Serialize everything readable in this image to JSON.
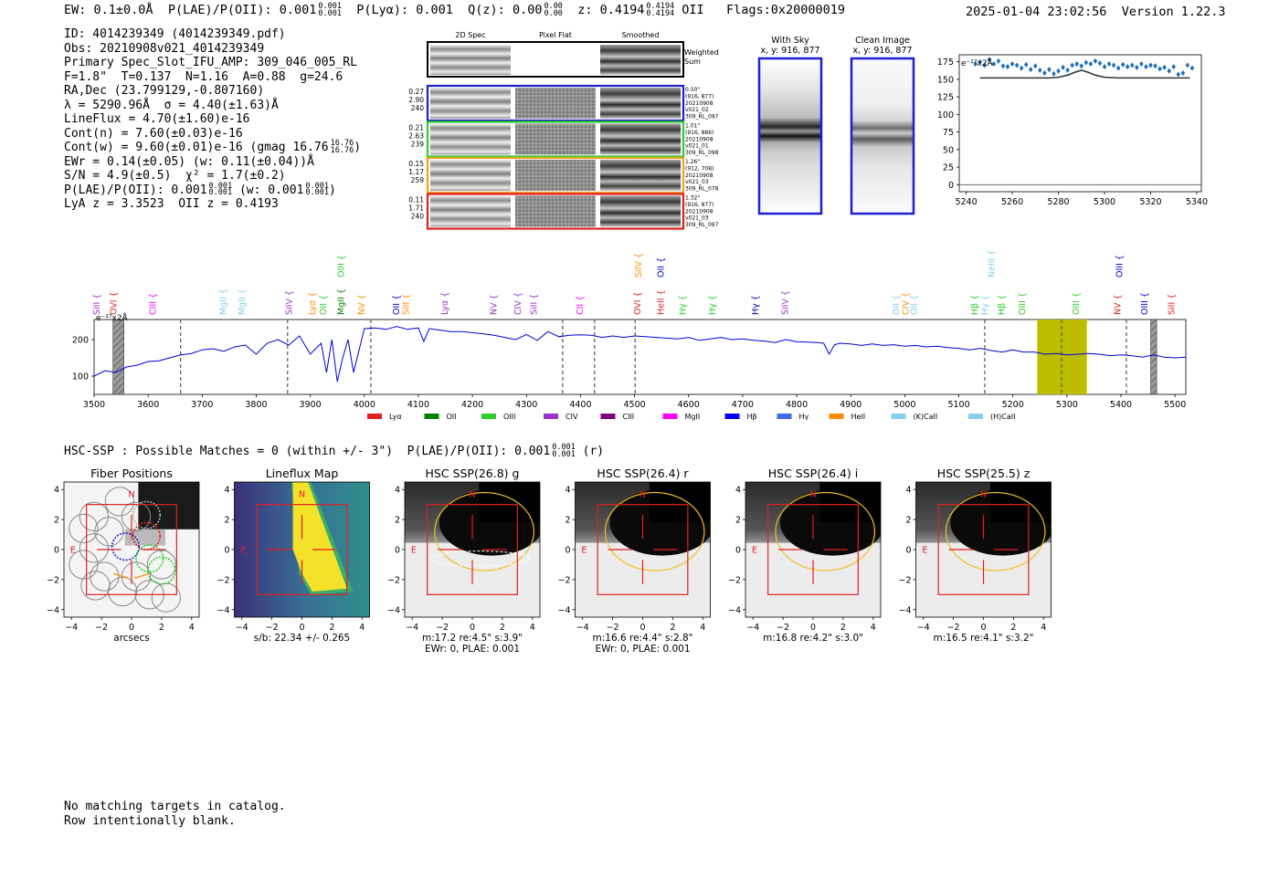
{
  "header": {
    "ew": "EW: 0.1±0.0Å",
    "plae": "P(LAE)/P(OII): 0.001",
    "plae_sup": "0.001",
    "plae_sub": "0.001",
    "plya": "P(Lyα): 0.001",
    "qz": "Q(z): 0.00",
    "qz_sup": "0.00",
    "qz_sub": "0.00",
    "z": "z: 0.4194",
    "z_sup": "0.4194",
    "z_sub": "0.4194",
    "z_line": "OII",
    "flags": "Flags:0x20000019",
    "datetime": "2025-01-04 23:02:56",
    "version": "Version 1.22.3"
  },
  "info": [
    "ID: 4014239349 (4014239349.pdf)",
    "Obs: 20210908v021_4014239349",
    "Primary Spec_Slot_IFU_AMP: 309_046_005_RL",
    "F=1.8\"  T=0.137  N=1.16  A=0.88  g=24.6",
    "RA,Dec (23.799129,-0.807160)",
    "λ = 5290.96Å  σ = 4.40(±1.63)Å",
    "LineFlux = 4.70(±1.60)e-16",
    "Cont(n) = 7.60(±0.03)e-16",
    "Cont(w) = 9.60(±0.01)e-16 (gmag 16.76",
    "EWr = 0.14(±0.05) (w: 0.11(±0.04))Å",
    "S/N = 4.9(±0.5)  χ² = 1.7(±0.2)",
    "P(LAE)/P(OII): 0.001",
    "LyA z = 3.3523  OII z = 0.4193"
  ],
  "info_extras": {
    "gmag_sup": "16.76",
    "gmag_sub": "16.76",
    "plae_sup": "0.001",
    "plae_sub": "0.001",
    "plae_w": "(w: 0.001",
    "plae_w_sup": "0.001",
    "plae_w_sub": "0.001"
  },
  "cutouts": {
    "col_titles": [
      "2D Spec",
      "Pixel Flat",
      "Smoothed"
    ],
    "weighted_label": [
      "Weighted",
      "Sum"
    ],
    "rows": [
      {
        "left": [
          "0.27",
          "2.90",
          "240"
        ],
        "right": [
          "0.50\"",
          "(916, 877)",
          "20210908",
          "v021_02",
          "309_RL_097"
        ],
        "color": "#1f1fd0"
      },
      {
        "left": [
          "0.21",
          "2.63",
          "239"
        ],
        "right": [
          "1.01\"",
          "(916, 886)",
          "20210908",
          "v021_01",
          "309_RL_098"
        ],
        "color": "#2ecc2e"
      },
      {
        "left": [
          "0.15",
          "1.17",
          "259"
        ],
        "right": [
          "1.26\"",
          "(912, 708)",
          "20210908",
          "v021_03",
          "309_RL_078"
        ],
        "color": "#f0a020"
      },
      {
        "left": [
          "0.11",
          "1.71",
          "240"
        ],
        "right": [
          "1.32\"",
          "(916, 877)",
          "20210908",
          "v021_03",
          "309_RL_097"
        ],
        "color": "#e02020"
      }
    ],
    "with_sky": [
      "With Sky",
      "x, y: 916, 877"
    ],
    "clean_image": [
      "Clean Image",
      "x, y: 916, 877"
    ]
  },
  "zoom_chart": {
    "type": "line",
    "unit_label": "e⁻¹⁷x2Å",
    "xlim": [
      5237,
      5342
    ],
    "ylim": [
      -10,
      185
    ],
    "xticks": [
      5240,
      5260,
      5280,
      5300,
      5320,
      5340
    ],
    "yticks": [
      0,
      25,
      50,
      75,
      100,
      125,
      150,
      175
    ],
    "data_x": [
      5244,
      5246,
      5248,
      5250,
      5252,
      5254,
      5256,
      5258,
      5260,
      5262,
      5264,
      5266,
      5268,
      5270,
      5272,
      5274,
      5276,
      5278,
      5280,
      5282,
      5284,
      5286,
      5288,
      5290,
      5292,
      5294,
      5296,
      5298,
      5300,
      5302,
      5304,
      5306,
      5308,
      5310,
      5312,
      5314,
      5316,
      5318,
      5320,
      5322,
      5324,
      5326,
      5328,
      5330,
      5332,
      5334,
      5336,
      5338
    ],
    "data_y": [
      172,
      175,
      170,
      178,
      172,
      176,
      169,
      168,
      172,
      170,
      166,
      171,
      164,
      169,
      163,
      159,
      164,
      158,
      162,
      167,
      163,
      170,
      172,
      169,
      174,
      172,
      176,
      173,
      168,
      172,
      170,
      166,
      171,
      168,
      170,
      167,
      172,
      168,
      170,
      169,
      165,
      167,
      162,
      168,
      157,
      159,
      170,
      166
    ],
    "model_x": [
      5246,
      5260,
      5270,
      5276,
      5280,
      5284,
      5287,
      5290,
      5293,
      5296,
      5300,
      5306,
      5316,
      5337
    ],
    "model_y": [
      152,
      152,
      152,
      152,
      153,
      156,
      160,
      163,
      160,
      156,
      153,
      152,
      152,
      152
    ],
    "zero_line": 0
  },
  "chart_data": {
    "type": "line",
    "unit_label": "e⁻¹⁷x2Å",
    "xlim": [
      3500,
      5520
    ],
    "ylim": [
      50,
      255
    ],
    "xticks": [
      3500,
      3600,
      3700,
      3800,
      3900,
      4000,
      4100,
      4200,
      4300,
      4400,
      4500,
      4600,
      4700,
      4800,
      4900,
      5000,
      5100,
      5200,
      5300,
      5400,
      5500
    ],
    "yticks": [
      100,
      200
    ],
    "x": [
      3500,
      3520,
      3540,
      3560,
      3580,
      3600,
      3620,
      3640,
      3660,
      3680,
      3700,
      3720,
      3740,
      3760,
      3780,
      3800,
      3820,
      3840,
      3860,
      3880,
      3900,
      3920,
      3930,
      3940,
      3950,
      3960,
      3970,
      3980,
      4000,
      4020,
      4040,
      4060,
      4080,
      4100,
      4110,
      4120,
      4140,
      4160,
      4180,
      4200,
      4220,
      4240,
      4260,
      4280,
      4300,
      4320,
      4340,
      4360,
      4380,
      4400,
      4420,
      4440,
      4460,
      4480,
      4500,
      4520,
      4540,
      4560,
      4580,
      4600,
      4620,
      4640,
      4660,
      4680,
      4700,
      4720,
      4740,
      4760,
      4780,
      4800,
      4820,
      4840,
      4850,
      4860,
      4870,
      4880,
      4900,
      4920,
      4940,
      4960,
      4980,
      5000,
      5020,
      5040,
      5060,
      5080,
      5100,
      5120,
      5140,
      5160,
      5180,
      5200,
      5220,
      5240,
      5260,
      5280,
      5300,
      5320,
      5340,
      5360,
      5380,
      5400,
      5420,
      5440,
      5460,
      5480,
      5500,
      5520
    ],
    "y": [
      100,
      115,
      110,
      125,
      130,
      140,
      142,
      150,
      158,
      162,
      172,
      175,
      168,
      180,
      185,
      160,
      190,
      200,
      185,
      210,
      160,
      190,
      110,
      200,
      85,
      150,
      200,
      110,
      230,
      232,
      228,
      236,
      228,
      232,
      195,
      230,
      226,
      222,
      222,
      219,
      216,
      212,
      206,
      200,
      214,
      198,
      222,
      208,
      212,
      213,
      212,
      206,
      210,
      206,
      210,
      208,
      206,
      204,
      202,
      206,
      198,
      202,
      206,
      200,
      202,
      198,
      196,
      192,
      200,
      194,
      193,
      192,
      190,
      160,
      186,
      190,
      188,
      184,
      188,
      184,
      186,
      182,
      184,
      180,
      182,
      178,
      176,
      172,
      176,
      170,
      166,
      172,
      166,
      166,
      160,
      162,
      158,
      160,
      162,
      160,
      156,
      158,
      156,
      152,
      158,
      152,
      150,
      152
    ],
    "dashed_x": [
      3660,
      3858,
      4012,
      4367,
      4426,
      4501,
      5148,
      5290,
      5410
    ],
    "hatched_bands": [
      [
        3535,
        3555
      ],
      [
        5455,
        5466
      ]
    ],
    "highlight_band": [
      5245,
      5337
    ],
    "highlight_color": "#bdbd00",
    "lines": [
      {
        "label": "SiII",
        "x": 3506,
        "color": "#9932cc"
      },
      {
        "label": "OVI",
        "x": 3537,
        "color": "#e02020"
      },
      {
        "label": "CIII",
        "x": 3610,
        "color": "#ff00ff"
      },
      {
        "label": "MgII",
        "x": 3740,
        "color": "#87ceeb"
      },
      {
        "label": "MgII",
        "x": 3775,
        "color": "#87ceeb"
      },
      {
        "label": "SiIV",
        "x": 3862,
        "color": "#9932cc"
      },
      {
        "label": "Lyα",
        "x": 3905,
        "color": "#ff8c00"
      },
      {
        "label": "OII",
        "x": 3925,
        "color": "#2ecc2e"
      },
      {
        "label": "MgII",
        "x": 3958,
        "color": "#008000"
      },
      {
        "label": "OIII",
        "x": 3958,
        "color": "#2ecc2e",
        "high": true
      },
      {
        "label": "NV",
        "x": 3996,
        "color": "#ff8c00"
      },
      {
        "label": "OII",
        "x": 4060,
        "color": "#0000cd"
      },
      {
        "label": "SiII",
        "x": 4078,
        "color": "#ff8c00"
      },
      {
        "label": "Lyα",
        "x": 4150,
        "color": "#9932cc"
      },
      {
        "label": "NV",
        "x": 4240,
        "color": "#9932cc"
      },
      {
        "label": "CIV",
        "x": 4285,
        "color": "#9932cc"
      },
      {
        "label": "SiII",
        "x": 4315,
        "color": "#9932cc"
      },
      {
        "label": "CII",
        "x": 4400,
        "color": "#ff00ff"
      },
      {
        "label": "OVI",
        "x": 4507,
        "color": "#e02020"
      },
      {
        "label": "SiIV",
        "x": 4508,
        "color": "#ff8c00",
        "high": true
      },
      {
        "label": "HeII",
        "x": 4550,
        "color": "#e02020"
      },
      {
        "label": "OII",
        "x": 4550,
        "color": "#0000cd",
        "high": true
      },
      {
        "label": "Hγ",
        "x": 4590,
        "color": "#2ecc2e"
      },
      {
        "label": "Hγ",
        "x": 4645,
        "color": "#2ecc2e"
      },
      {
        "label": "Hγ",
        "x": 4725,
        "color": "#0000cd"
      },
      {
        "label": "SiIV",
        "x": 4780,
        "color": "#9932cc"
      },
      {
        "label": "OII",
        "x": 4985,
        "color": "#87ceeb"
      },
      {
        "label": "CIV",
        "x": 5003,
        "color": "#ff8c00"
      },
      {
        "label": "OII",
        "x": 5018,
        "color": "#87ceeb"
      },
      {
        "label": "Hβ",
        "x": 5130,
        "color": "#2ecc2e"
      },
      {
        "label": "Hγ",
        "x": 5150,
        "color": "#87ceeb"
      },
      {
        "label": "NeIII",
        "x": 5162,
        "color": "#87ceeb",
        "high": true
      },
      {
        "label": "Hβ",
        "x": 5180,
        "color": "#2ecc2e"
      },
      {
        "label": "OIII",
        "x": 5218,
        "color": "#2ecc2e"
      },
      {
        "label": "OIII",
        "x": 5318,
        "color": "#2ecc2e"
      },
      {
        "label": "NV",
        "x": 5395,
        "color": "#e02020"
      },
      {
        "label": "OIII",
        "x": 5398,
        "color": "#0000cd",
        "high": true
      },
      {
        "label": "OIII",
        "x": 5445,
        "color": "#0000cd"
      },
      {
        "label": "SiII",
        "x": 5495,
        "color": "#e02020"
      }
    ],
    "legend": [
      {
        "label": "Lyα",
        "color": "#e02020"
      },
      {
        "label": "OII",
        "color": "#008000"
      },
      {
        "label": "OIII",
        "color": "#2ecc2e"
      },
      {
        "label": "CIV",
        "color": "#9932cc"
      },
      {
        "label": "CIII",
        "color": "#800080"
      },
      {
        "label": "MgII",
        "color": "#ff00ff"
      },
      {
        "label": "Hβ",
        "color": "#0000ff"
      },
      {
        "label": "Hγ",
        "color": "#4169e1"
      },
      {
        "label": "HeII",
        "color": "#ff8c00"
      },
      {
        "label": "(K)CaII",
        "color": "#87ceeb"
      },
      {
        "label": "(H)CaII",
        "color": "#87ceeb"
      }
    ]
  },
  "ssp_summary": {
    "text": "HSC-SSP : Possible Matches = 0 (within +/- 3\")  P(LAE)/P(OII): 0.001",
    "sup": "0.001",
    "sub": "0.001",
    "suffix": "(r)"
  },
  "stamps": [
    {
      "title": "Fiber Positions",
      "caption": [
        "arcsecs"
      ],
      "kind": "fiber"
    },
    {
      "title": "Lineflux Map",
      "caption": [
        "s/b: 22.34 +/- 0.265"
      ],
      "kind": "lineflux"
    },
    {
      "title": "HSC SSP(26.8) g",
      "caption": [
        "m:17.2  re:4.5\"  s:3.9\"",
        "EWr: 0, PLAE: 0.001"
      ],
      "kind": "img"
    },
    {
      "title": "HSC SSP(26.4) r",
      "caption": [
        "m:16.6  re:4.4\"  s:2.8\"",
        "EWr: 0, PLAE: 0.001"
      ],
      "kind": "img"
    },
    {
      "title": "HSC SSP(26.4) i",
      "caption": [
        "m:16.8  re:4.2\"  s:3.0\""
      ],
      "kind": "img"
    },
    {
      "title": "HSC SSP(25.5) z",
      "caption": [
        "m:16.5  re:4.1\"  s:3.2\""
      ],
      "kind": "img"
    }
  ],
  "stamp_axes": {
    "ticks": [
      -4,
      -2,
      0,
      2,
      4
    ],
    "north": "N",
    "east": "E"
  },
  "footer": [
    "No matching targets in catalog.",
    "Row intentionally blank."
  ]
}
